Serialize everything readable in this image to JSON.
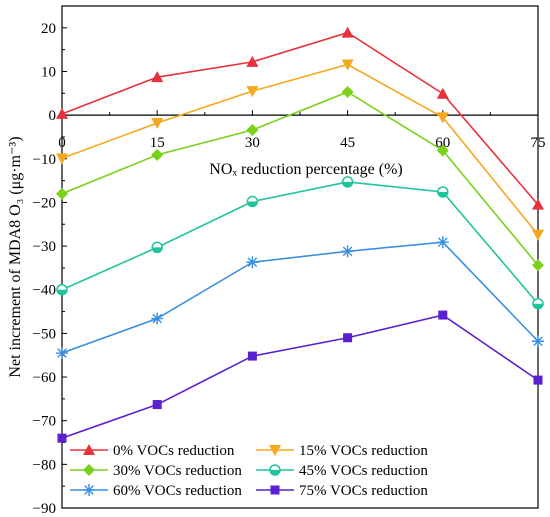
{
  "chart_data": {
    "type": "line",
    "xlabel": "NOₓ reduction percentage (%)",
    "ylabel": "Net increment of MDA8 O₃ (μg·m⁻³)",
    "x": [
      0,
      15,
      30,
      45,
      60,
      75
    ],
    "xticks": [
      "0",
      "15",
      "30",
      "45",
      "60",
      "75"
    ],
    "xlim": [
      0,
      75
    ],
    "ylim": [
      -90,
      25
    ],
    "yticks": [
      20,
      10,
      0,
      -10,
      -20,
      -30,
      -40,
      -50,
      -60,
      -70,
      -80,
      -90
    ],
    "ytick_labels": [
      "20",
      "10",
      "0",
      "−10",
      "−20",
      "−30",
      "−40",
      "−50",
      "−60",
      "−70",
      "−80",
      "−90"
    ],
    "grid": false,
    "legend_position": "bottom-left",
    "series": [
      {
        "name": "0% VOCs reduction",
        "color": "#e8323b",
        "marker": "triangle-up",
        "values": [
          0.3,
          8.7,
          12.2,
          18.9,
          4.9,
          -20.5
        ]
      },
      {
        "name": "15% VOCs reduction",
        "color": "#f5a81c",
        "marker": "triangle-down",
        "values": [
          -9.9,
          -1.8,
          5.5,
          11.6,
          -0.5,
          -27.4
        ]
      },
      {
        "name": "30% VOCs reduction",
        "color": "#79d11b",
        "marker": "diamond",
        "values": [
          -18.0,
          -9.1,
          -3.4,
          5.3,
          -8.1,
          -34.4
        ]
      },
      {
        "name": "45% VOCs reduction",
        "color": "#20c49c",
        "marker": "circle-half",
        "values": [
          -40.0,
          -30.3,
          -19.8,
          -15.3,
          -17.6,
          -43.2
        ]
      },
      {
        "name": "60% VOCs reduction",
        "color": "#3a90e0",
        "marker": "asterisk",
        "values": [
          -54.5,
          -46.6,
          -33.7,
          -31.2,
          -29.1,
          -51.8
        ]
      },
      {
        "name": "75% VOCs reduction",
        "color": "#5a1fd0",
        "marker": "square",
        "values": [
          -74.0,
          -66.3,
          -55.2,
          -51.0,
          -45.8,
          -60.7
        ]
      }
    ]
  }
}
